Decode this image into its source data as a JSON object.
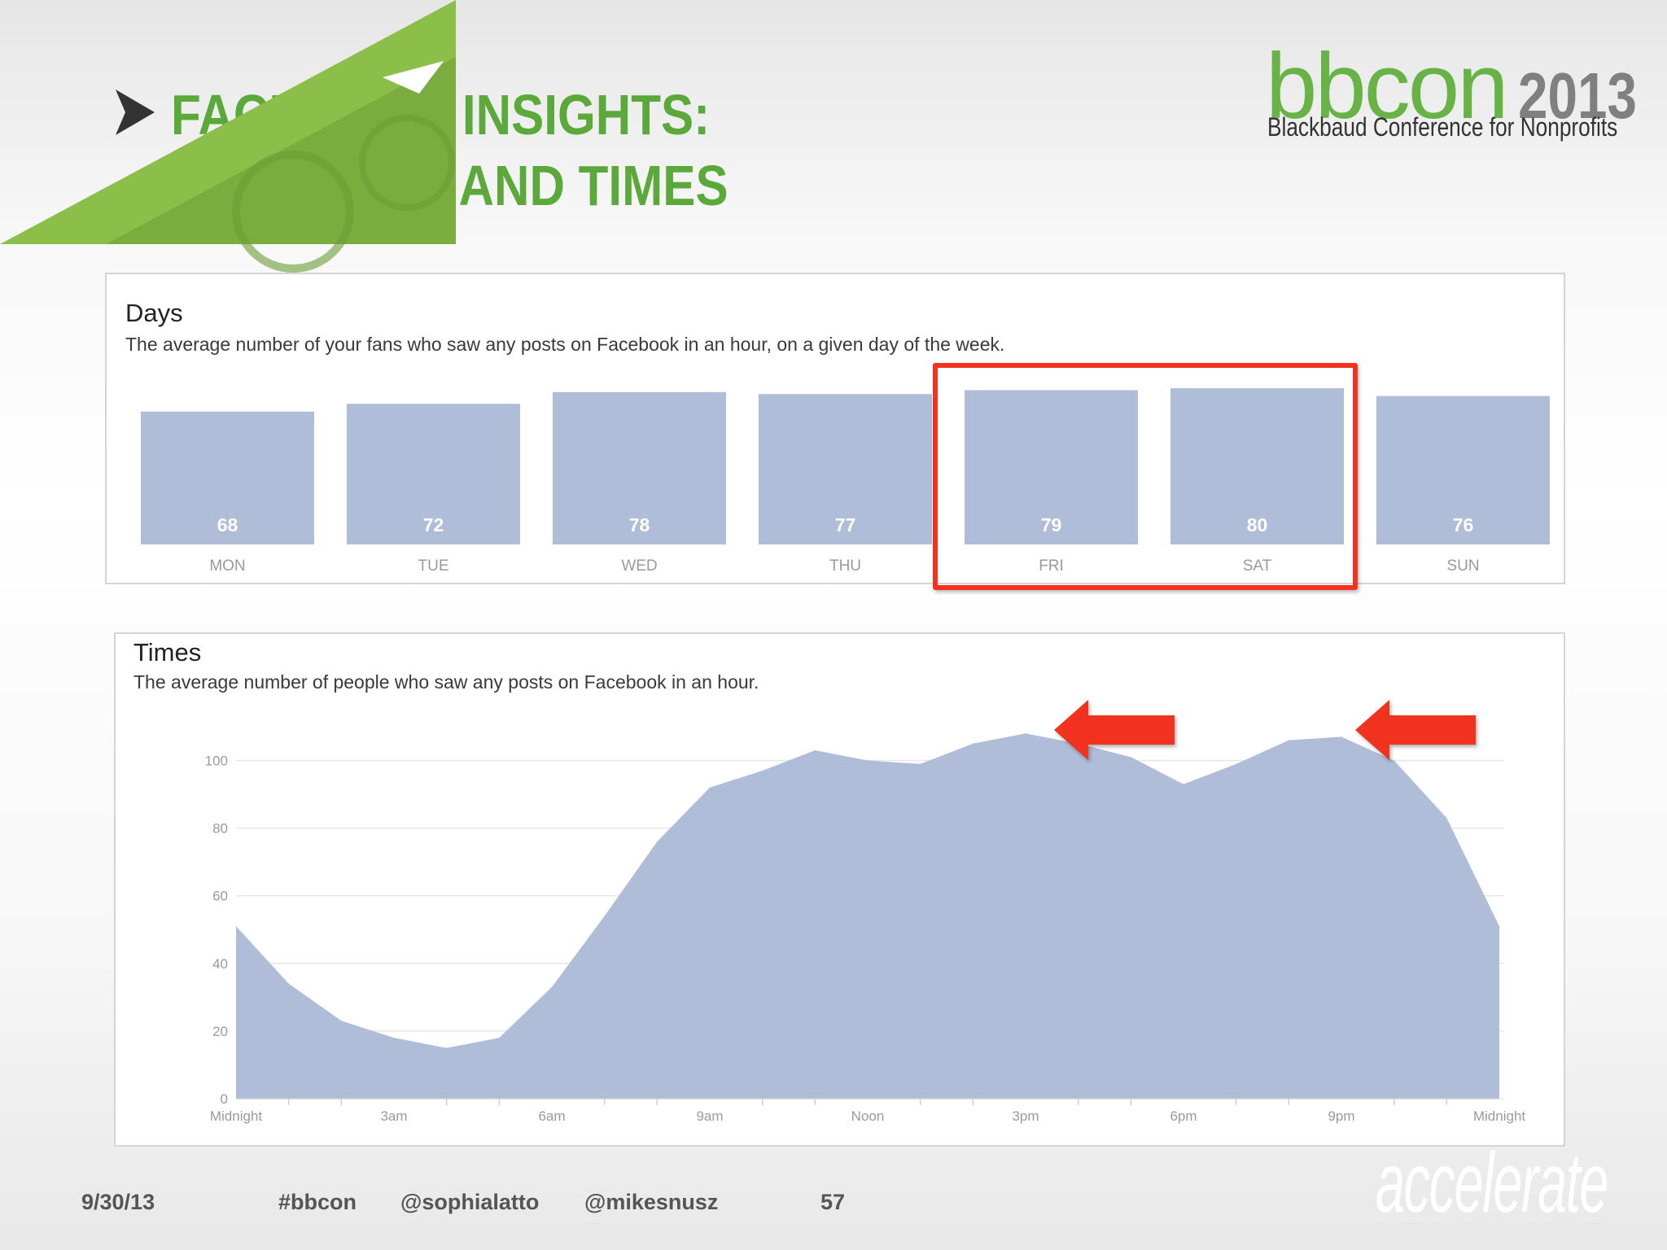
{
  "slide": {
    "title_line1": "FACEBOOK INSIGHTS:",
    "title_line2": "BEST DAYS AND TIMES",
    "title_color": "#5ba93a"
  },
  "logo": {
    "name": "bbcon",
    "year": "2013",
    "subtitle": "Blackbaud Conference for Nonprofits"
  },
  "days_panel": {
    "title": "Days",
    "subtitle": "The average number of your fans who saw any posts on Facebook in an hour, on a given day of the week."
  },
  "times_panel": {
    "title": "Times",
    "subtitle": "The average number of people who saw any posts on Facebook in an hour."
  },
  "chart_data": [
    {
      "type": "bar",
      "categories": [
        "MON",
        "TUE",
        "WED",
        "THU",
        "FRI",
        "SAT",
        "SUN"
      ],
      "values": [
        68,
        72,
        78,
        77,
        79,
        80,
        76
      ],
      "bar_color": "#b0bdd8",
      "highlighted_categories": [
        "FRI",
        "SAT"
      ],
      "highlight_color": "#f0321f",
      "data_labels": "inside-bottom"
    },
    {
      "type": "area",
      "x": [
        "Midnight",
        "1am",
        "2am",
        "3am",
        "4am",
        "5am",
        "6am",
        "7am",
        "8am",
        "9am",
        "10am",
        "11am",
        "Noon",
        "1pm",
        "2pm",
        "3pm",
        "4pm",
        "5pm",
        "6pm",
        "7pm",
        "8pm",
        "9pm",
        "10pm",
        "11pm",
        "Midnight"
      ],
      "values": [
        51,
        34,
        23,
        18,
        15,
        18,
        33,
        54,
        76,
        92,
        97,
        103,
        100,
        99,
        105,
        108,
        105,
        101,
        93,
        99,
        106,
        107,
        100,
        83,
        51
      ],
      "x_tick_labels": [
        "Midnight",
        "3am",
        "6am",
        "9am",
        "Noon",
        "3pm",
        "6pm",
        "9pm",
        "Midnight"
      ],
      "y_ticks": [
        0,
        20,
        40,
        60,
        80,
        100
      ],
      "ylim": [
        0,
        110
      ],
      "grid": true,
      "fill_color": "#b0bdd8",
      "annotations": [
        "arrow at 3pm peak",
        "arrow at 9pm peak"
      ],
      "arrow_color": "#f0321f"
    }
  ],
  "footer": {
    "date": "9/30/13",
    "hashtag": "#bbcon",
    "handle1": "@sophialatto",
    "handle2": "@mikesnusz",
    "page": "57"
  },
  "brand": {
    "accelerate": "accelerate",
    "accent": "#67b346"
  }
}
